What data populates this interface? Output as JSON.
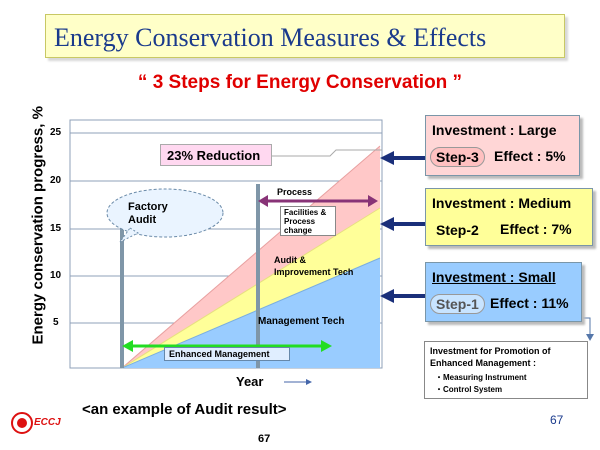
{
  "title": "Energy Conservation Measures & Effects",
  "subtitle": "“ 3 Steps for Energy Conservation ”",
  "y_axis_label": "Energy conservation progress, %",
  "x_axis_label": "Year",
  "y_ticks": [
    "25",
    "20",
    "15",
    "10",
    "5"
  ],
  "reduction_label": "23% Reduction",
  "factory_audit_label": "Factory Audit",
  "process_label": "Process",
  "facilities_label": "Facilities & Process change",
  "audit_improvement_label": "Audit & Improvement Tech",
  "management_tech_label": "Management  Tech",
  "enhanced_management_label": "Enhanced Management",
  "audit_result_label": "<an example of Audit result>",
  "page_number_right": "67",
  "page_number_bottom": "67",
  "logo_text": "ECCJ",
  "investments": [
    {
      "title": "Investment : Large",
      "step": "Step-3",
      "effect": "Effect : 5%"
    },
    {
      "title": "Investment : Medium",
      "step": "Step-2",
      "effect": "Effect : 7%"
    },
    {
      "title": "Investment : Small",
      "step": "Step-1",
      "effect": "Effect : 11%"
    }
  ],
  "promotion": {
    "title_line1": "Investment for Promotion of",
    "title_line2": "Enhanced  Management  :",
    "items": [
      "・Measuring Instrument",
      "・Control System"
    ]
  },
  "colors": {
    "step3": "#ffc0c0",
    "step2": "#ffff99",
    "step1": "#99ccff",
    "title": "#1a3a8c",
    "subtitle": "#e00000"
  }
}
